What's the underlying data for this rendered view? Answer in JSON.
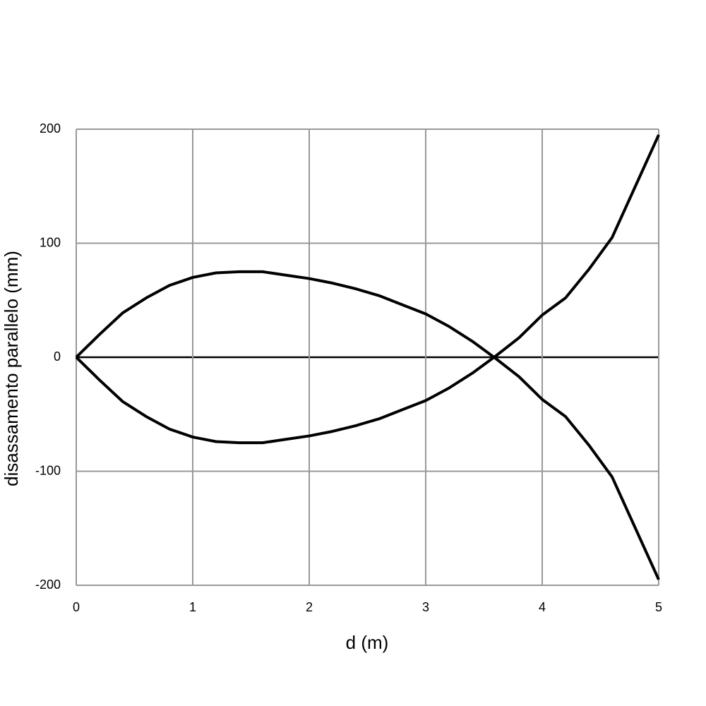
{
  "chart_data": {
    "type": "line",
    "x_label": "d (m)",
    "y_label": "disassamento parallelo (mm)",
    "x": [
      0,
      0.1,
      0.2,
      0.4,
      0.6,
      0.8,
      1.0,
      1.2,
      1.4,
      1.6,
      1.8,
      2.0,
      2.2,
      2.4,
      2.6,
      2.8,
      3.0,
      3.2,
      3.4,
      3.6,
      3.8,
      4.0,
      4.2,
      4.4,
      4.6,
      4.8,
      5.0
    ],
    "series": [
      {
        "color": "#000000",
        "values": [
          0,
          10,
          20,
          39,
          52,
          63,
          70,
          74,
          75,
          75,
          72,
          69,
          65,
          60,
          54,
          46,
          38,
          27,
          14,
          -1,
          -17,
          -37,
          -52,
          -77,
          -105,
          -150,
          -195
        ]
      },
      {
        "color": "#000000",
        "values": [
          0,
          -10,
          -20,
          -39,
          -52,
          -63,
          -70,
          -74,
          -75,
          -75,
          -72,
          -69,
          -65,
          -60,
          -54,
          -46,
          -38,
          -27,
          -14,
          1,
          17,
          37,
          52,
          77,
          105,
          150,
          195
        ]
      }
    ],
    "xlim": [
      0,
      5
    ],
    "xticks": [
      0,
      1,
      2,
      3,
      4,
      5
    ],
    "ylim": [
      -200,
      200
    ],
    "yticks": [
      -200,
      -100,
      0,
      100,
      200
    ],
    "grid": true
  }
}
